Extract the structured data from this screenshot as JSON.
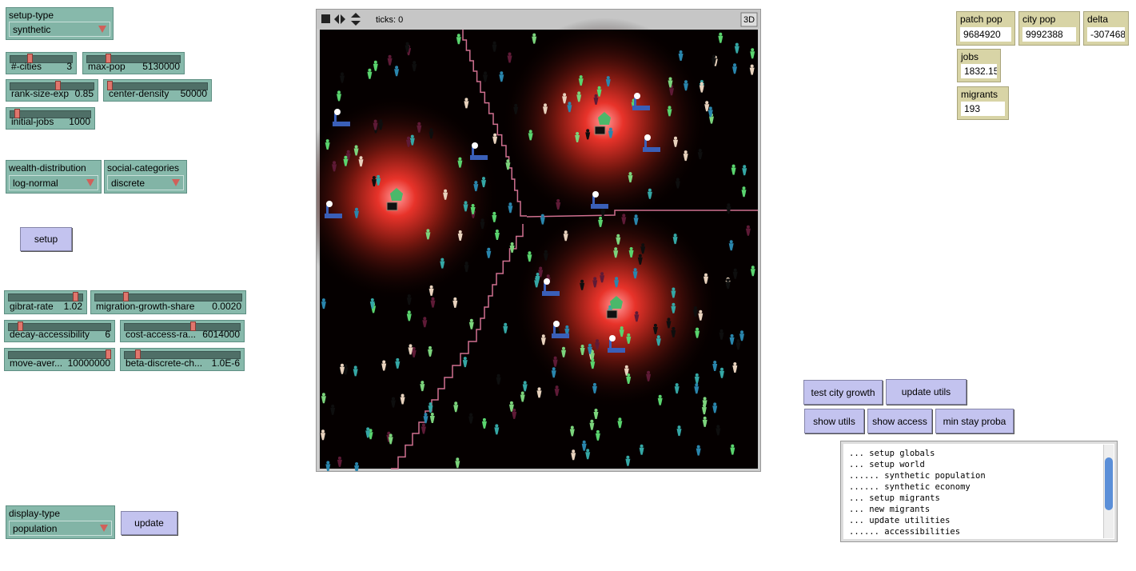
{
  "choosers": [
    {
      "label": "setup-type",
      "value": "synthetic"
    },
    {
      "label": "wealth-distribution",
      "value": "log-normal"
    },
    {
      "label": "social-categories",
      "value": "discrete"
    },
    {
      "label": "display-type",
      "value": "population"
    }
  ],
  "sliders": [
    {
      "label": "#-cities",
      "value": "3"
    },
    {
      "label": "max-pop",
      "value": "5130000"
    },
    {
      "label": "rank-size-exp",
      "value": "0.85"
    },
    {
      "label": "center-density",
      "value": "50000"
    },
    {
      "label": "initial-jobs",
      "value": "1000"
    },
    {
      "label": "gibrat-rate",
      "value": "1.02"
    },
    {
      "label": "migration-growth-share",
      "value": "0.0020"
    },
    {
      "label": "decay-accessibility",
      "value": "6"
    },
    {
      "label": "cost-access-ra...",
      "value": "6014000"
    },
    {
      "label": "move-aver...",
      "value": "10000000"
    },
    {
      "label": "beta-discrete-ch...",
      "value": "1.0E-6"
    }
  ],
  "buttons": [
    "setup",
    "update",
    "test city growth",
    "update utils",
    "show utils",
    "show access",
    "min stay proba"
  ],
  "monitors": [
    {
      "label": "patch pop",
      "value": "9684920"
    },
    {
      "label": "city pop",
      "value": "9992388"
    },
    {
      "label": "delta",
      "value": "-307468"
    },
    {
      "label": "jobs",
      "value": "1832.15"
    },
    {
      "label": "migrants",
      "value": "193"
    }
  ],
  "view": {
    "ticks": "ticks: 0",
    "three_d": "3D"
  },
  "output": {
    "lines": [
      "... setup globals",
      "... setup world",
      "...... synthetic population",
      "...... synthetic economy",
      "... setup migrants",
      "... new migrants",
      "... update utilities",
      "...... accessibilities"
    ]
  }
}
